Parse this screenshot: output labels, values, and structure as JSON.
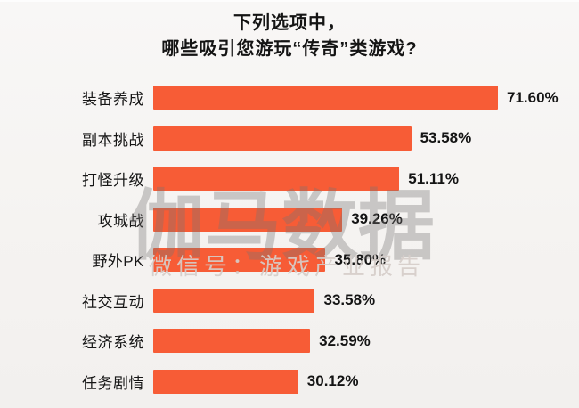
{
  "title": {
    "line1": "下列选项中，",
    "line2": "哪些吸引您游玩“传奇”类游戏?"
  },
  "chart_data": {
    "type": "bar",
    "orientation": "horizontal",
    "title": "下列选项中，哪些吸引您游玩“传奇”类游戏?",
    "categories": [
      "装备养成",
      "副本挑战",
      "打怪升级",
      "攻城战",
      "野外PK",
      "社交互动",
      "经济系统",
      "任务剧情"
    ],
    "values": [
      71.6,
      53.58,
      51.11,
      39.26,
      35.8,
      33.58,
      32.59,
      30.12
    ],
    "value_labels": [
      "71.60%",
      "53.58%",
      "51.11%",
      "39.26%",
      "35.80%",
      "33.58%",
      "32.59%",
      "30.12%"
    ],
    "xlim": [
      0,
      80
    ],
    "unit": "%",
    "grid": false,
    "legend": "none",
    "bar_color": "#F75C36",
    "label_color": "#141414",
    "background_color": "#F5F3F1"
  },
  "watermark": {
    "main": "伽马数据",
    "sub": "微信号：游戏产业报告"
  }
}
